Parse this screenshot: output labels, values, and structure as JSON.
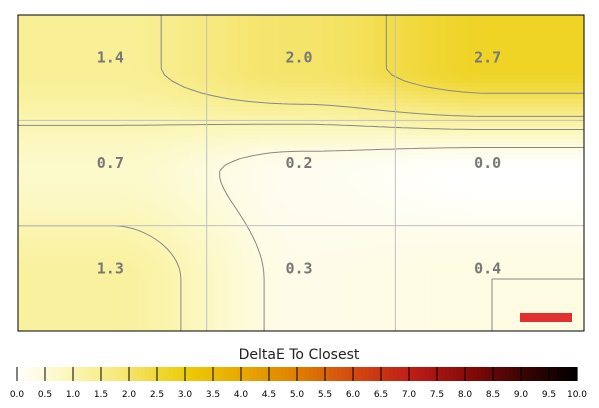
{
  "chart_data": {
    "type": "heatmap",
    "rows": 3,
    "cols": 3,
    "values": [
      [
        1.4,
        2.0,
        2.7
      ],
      [
        0.7,
        0.2,
        0.0
      ],
      [
        1.3,
        0.3,
        0.4
      ]
    ],
    "labels": [
      [
        "1.4",
        "2.0",
        "2.7"
      ],
      [
        "0.7",
        "0.2",
        "0.0"
      ],
      [
        "1.3",
        "0.3",
        "0.4"
      ]
    ],
    "color_scale": {
      "title": "DeltaE To Closest",
      "min": 0.0,
      "max": 10.0,
      "ticks": [
        "0.0",
        "0.5",
        "1.0",
        "1.5",
        "2.0",
        "2.5",
        "3.0",
        "3.5",
        "4.0",
        "4.5",
        "5.0",
        "5.5",
        "6.0",
        "6.5",
        "7.0",
        "7.5",
        "8.0",
        "8.5",
        "9.0",
        "9.5",
        "10.0"
      ],
      "stops": [
        {
          "v": 0.0,
          "color": "#ffffff"
        },
        {
          "v": 1.0,
          "color": "#fbf6b4"
        },
        {
          "v": 2.0,
          "color": "#f5e46a"
        },
        {
          "v": 3.0,
          "color": "#eccc08"
        },
        {
          "v": 4.0,
          "color": "#e8a900"
        },
        {
          "v": 5.0,
          "color": "#e07f00"
        },
        {
          "v": 6.0,
          "color": "#d34a10"
        },
        {
          "v": 7.0,
          "color": "#c01d18"
        },
        {
          "v": 8.0,
          "color": "#8a0b08"
        },
        {
          "v": 9.0,
          "color": "#3c0403"
        },
        {
          "v": 10.0,
          "color": "#000000"
        }
      ]
    },
    "grid": true,
    "contours": true
  },
  "colors": {
    "grid_line": "#c0c0c0",
    "contour_line": "#888888",
    "cell_label": "#777777",
    "frame": "#000000",
    "watermark_bar": "#e03030"
  }
}
